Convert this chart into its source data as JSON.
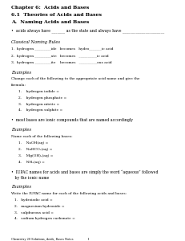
{
  "bg_color": "#ffffff",
  "title1": "Chapter 6:  Acids and Bases",
  "title2": "6.1  Theories of Acids and Bases",
  "title3": "A.  Naming Acids and Bases",
  "bullet1": "•  acids always have _______ as the state and always have ______________________",
  "section1": "Classical Naming Rules",
  "rule1": "1.  hydrogen _________ide   becomes   hydro_______ic acid",
  "rule2": "2.  hydrogen _________ate   becomes   __________ic acid",
  "rule3": "3.  hydrogen _________ite    becomes   __________ous acid",
  "examples1_title": "Examples",
  "examples1_desc1": "Change each of the following to the appropriate acid name and give the",
  "examples1_desc2": "formula:",
  "acid1": "1.    hydrogen iodide =",
  "acid2": "2.    hydrogen phosphate =",
  "acid3": "3.    hydrogen nitrite =",
  "acid4": "4.    hydrogen sulphite =",
  "bullet2": "•  most bases are ionic compounds that are named accordingly",
  "examples2_title": "Examples",
  "examples2_desc": "Name each of the following bases:",
  "base1": "1.    NaOH(aq) =",
  "base2": "2.    NaHCO₃(aq) =",
  "base3": "3.    Mg(OH)₂(aq) =",
  "base4": "4.    NH₃(aq) =",
  "bullet3a": "•  IUPAC names for acids and bases are simply the word “aqueous” followed",
  "bullet3b": "   by the ionic name",
  "examples3_title": "Examples",
  "examples3_desc": "Write the IUPAC name for each of the following acids and bases:",
  "iupac1": "1.   hydroiodic acid =",
  "iupac2": "2.   magnesium hydroxide =",
  "iupac3": "3.   sulphurous acid =",
  "iupac4": "4.   sodium hydrogen carbonate =",
  "footer": "Chemistry 20 Solutions, Acids, Bases Notes                1"
}
